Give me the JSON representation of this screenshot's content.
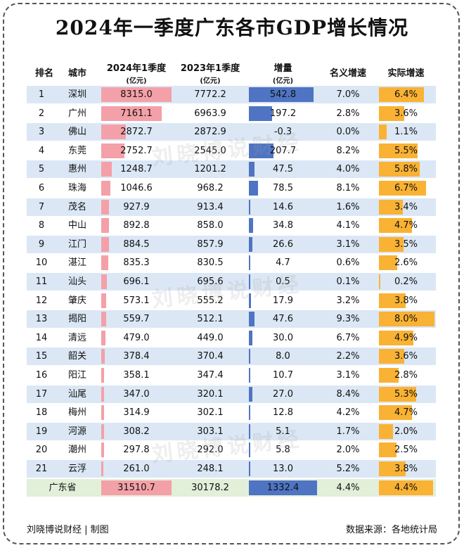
{
  "title": "2024年一季度广东各市GDP增长情况",
  "headers": {
    "rank": "排名",
    "city": "城市",
    "gdp2024": "2024年1季度",
    "gdp2024_unit": "(亿元)",
    "gdp2023": "2023年1季度",
    "gdp2023_unit": "(亿元)",
    "increase": "增量",
    "increase_unit": "(亿元)",
    "nominal": "名义增速",
    "real": "实际增速"
  },
  "watermark": "刘晓博说财经",
  "footer": {
    "left": "刘晓博说财经 | 制图",
    "right": "数据来源：各地统计局"
  },
  "colors": {
    "row_stripe": "#dbe7f5",
    "total_row": "#e2efd9",
    "bar_2024": "#f4a0a8",
    "bar_increase": "#4f74c4",
    "bar_real": "#f9b233"
  },
  "chart_data": {
    "type": "table",
    "columns": [
      "排名",
      "城市",
      "2024年1季度(亿元)",
      "2023年1季度(亿元)",
      "增量(亿元)",
      "名义增速",
      "实际增速"
    ],
    "rows": [
      {
        "rank": "1",
        "city": "深圳",
        "gdp2024": "8315.0",
        "gdp2023": "7772.2",
        "increase": "542.8",
        "nominal": "7.0%",
        "real": "6.4%"
      },
      {
        "rank": "2",
        "city": "广州",
        "gdp2024": "7161.1",
        "gdp2023": "6963.9",
        "increase": "197.2",
        "nominal": "2.8%",
        "real": "3.6%"
      },
      {
        "rank": "3",
        "city": "佛山",
        "gdp2024": "2872.7",
        "gdp2023": "2872.9",
        "increase": "-0.3",
        "nominal": "0.0%",
        "real": "1.1%"
      },
      {
        "rank": "4",
        "city": "东莞",
        "gdp2024": "2752.7",
        "gdp2023": "2545.0",
        "increase": "207.7",
        "nominal": "8.2%",
        "real": "5.5%"
      },
      {
        "rank": "5",
        "city": "惠州",
        "gdp2024": "1248.7",
        "gdp2023": "1201.2",
        "increase": "47.5",
        "nominal": "4.0%",
        "real": "5.8%"
      },
      {
        "rank": "6",
        "city": "珠海",
        "gdp2024": "1046.6",
        "gdp2023": "968.2",
        "increase": "78.5",
        "nominal": "8.1%",
        "real": "6.7%"
      },
      {
        "rank": "7",
        "city": "茂名",
        "gdp2024": "927.9",
        "gdp2023": "913.4",
        "increase": "14.6",
        "nominal": "1.6%",
        "real": "3.4%"
      },
      {
        "rank": "8",
        "city": "中山",
        "gdp2024": "892.8",
        "gdp2023": "858.0",
        "increase": "34.8",
        "nominal": "4.1%",
        "real": "4.7%"
      },
      {
        "rank": "9",
        "city": "江门",
        "gdp2024": "884.5",
        "gdp2023": "857.9",
        "increase": "26.6",
        "nominal": "3.1%",
        "real": "3.5%"
      },
      {
        "rank": "10",
        "city": "湛江",
        "gdp2024": "835.3",
        "gdp2023": "830.5",
        "increase": "4.7",
        "nominal": "0.6%",
        "real": "2.6%"
      },
      {
        "rank": "11",
        "city": "汕头",
        "gdp2024": "696.1",
        "gdp2023": "695.6",
        "increase": "0.5",
        "nominal": "0.1%",
        "real": "0.2%"
      },
      {
        "rank": "12",
        "city": "肇庆",
        "gdp2024": "573.1",
        "gdp2023": "555.2",
        "increase": "17.9",
        "nominal": "3.2%",
        "real": "3.8%"
      },
      {
        "rank": "13",
        "city": "揭阳",
        "gdp2024": "559.7",
        "gdp2023": "512.1",
        "increase": "47.6",
        "nominal": "9.3%",
        "real": "8.0%"
      },
      {
        "rank": "14",
        "city": "清远",
        "gdp2024": "479.0",
        "gdp2023": "449.0",
        "increase": "30.0",
        "nominal": "6.7%",
        "real": "4.9%"
      },
      {
        "rank": "15",
        "city": "韶关",
        "gdp2024": "378.4",
        "gdp2023": "370.4",
        "increase": "8.0",
        "nominal": "2.2%",
        "real": "3.6%"
      },
      {
        "rank": "16",
        "city": "阳江",
        "gdp2024": "358.1",
        "gdp2023": "347.4",
        "increase": "10.7",
        "nominal": "3.1%",
        "real": "2.8%"
      },
      {
        "rank": "17",
        "city": "汕尾",
        "gdp2024": "347.0",
        "gdp2023": "320.1",
        "increase": "27.0",
        "nominal": "8.4%",
        "real": "5.3%"
      },
      {
        "rank": "18",
        "city": "梅州",
        "gdp2024": "314.9",
        "gdp2023": "302.1",
        "increase": "12.8",
        "nominal": "4.2%",
        "real": "4.7%"
      },
      {
        "rank": "19",
        "city": "河源",
        "gdp2024": "308.2",
        "gdp2023": "303.1",
        "increase": "5.1",
        "nominal": "1.7%",
        "real": "2.0%"
      },
      {
        "rank": "20",
        "city": "潮州",
        "gdp2024": "297.8",
        "gdp2023": "292.0",
        "increase": "5.8",
        "nominal": "2.0%",
        "real": "2.5%"
      },
      {
        "rank": "21",
        "city": "云浮",
        "gdp2024": "261.0",
        "gdp2023": "248.1",
        "increase": "13.0",
        "nominal": "5.2%",
        "real": "3.8%"
      }
    ],
    "total": {
      "rank": "",
      "city": "广东省",
      "gdp2024": "31510.7",
      "gdp2023": "30178.2",
      "increase": "1332.4",
      "nominal": "4.4%",
      "real": "4.4%"
    }
  }
}
